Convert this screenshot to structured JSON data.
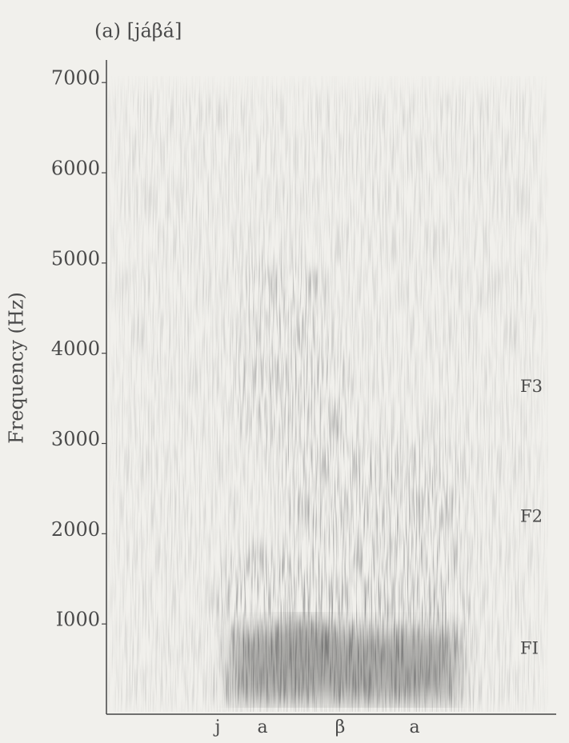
{
  "chart_data": {
    "type": "spectrogram",
    "title": "(a) [jáβá]",
    "y_label": "Frequency (Hz)",
    "ylim": [
      0,
      7250
    ],
    "yticks": [
      {
        "value": 1000,
        "label": "I000"
      },
      2000,
      3000,
      4000,
      5000,
      6000,
      7000
    ],
    "categories": [
      "j",
      "a",
      "β",
      "a"
    ],
    "formants": [
      {
        "label": "F3",
        "value": 3620
      },
      {
        "label": "F2",
        "value": 2180
      },
      {
        "label": "FI",
        "value": 720
      }
    ]
  }
}
